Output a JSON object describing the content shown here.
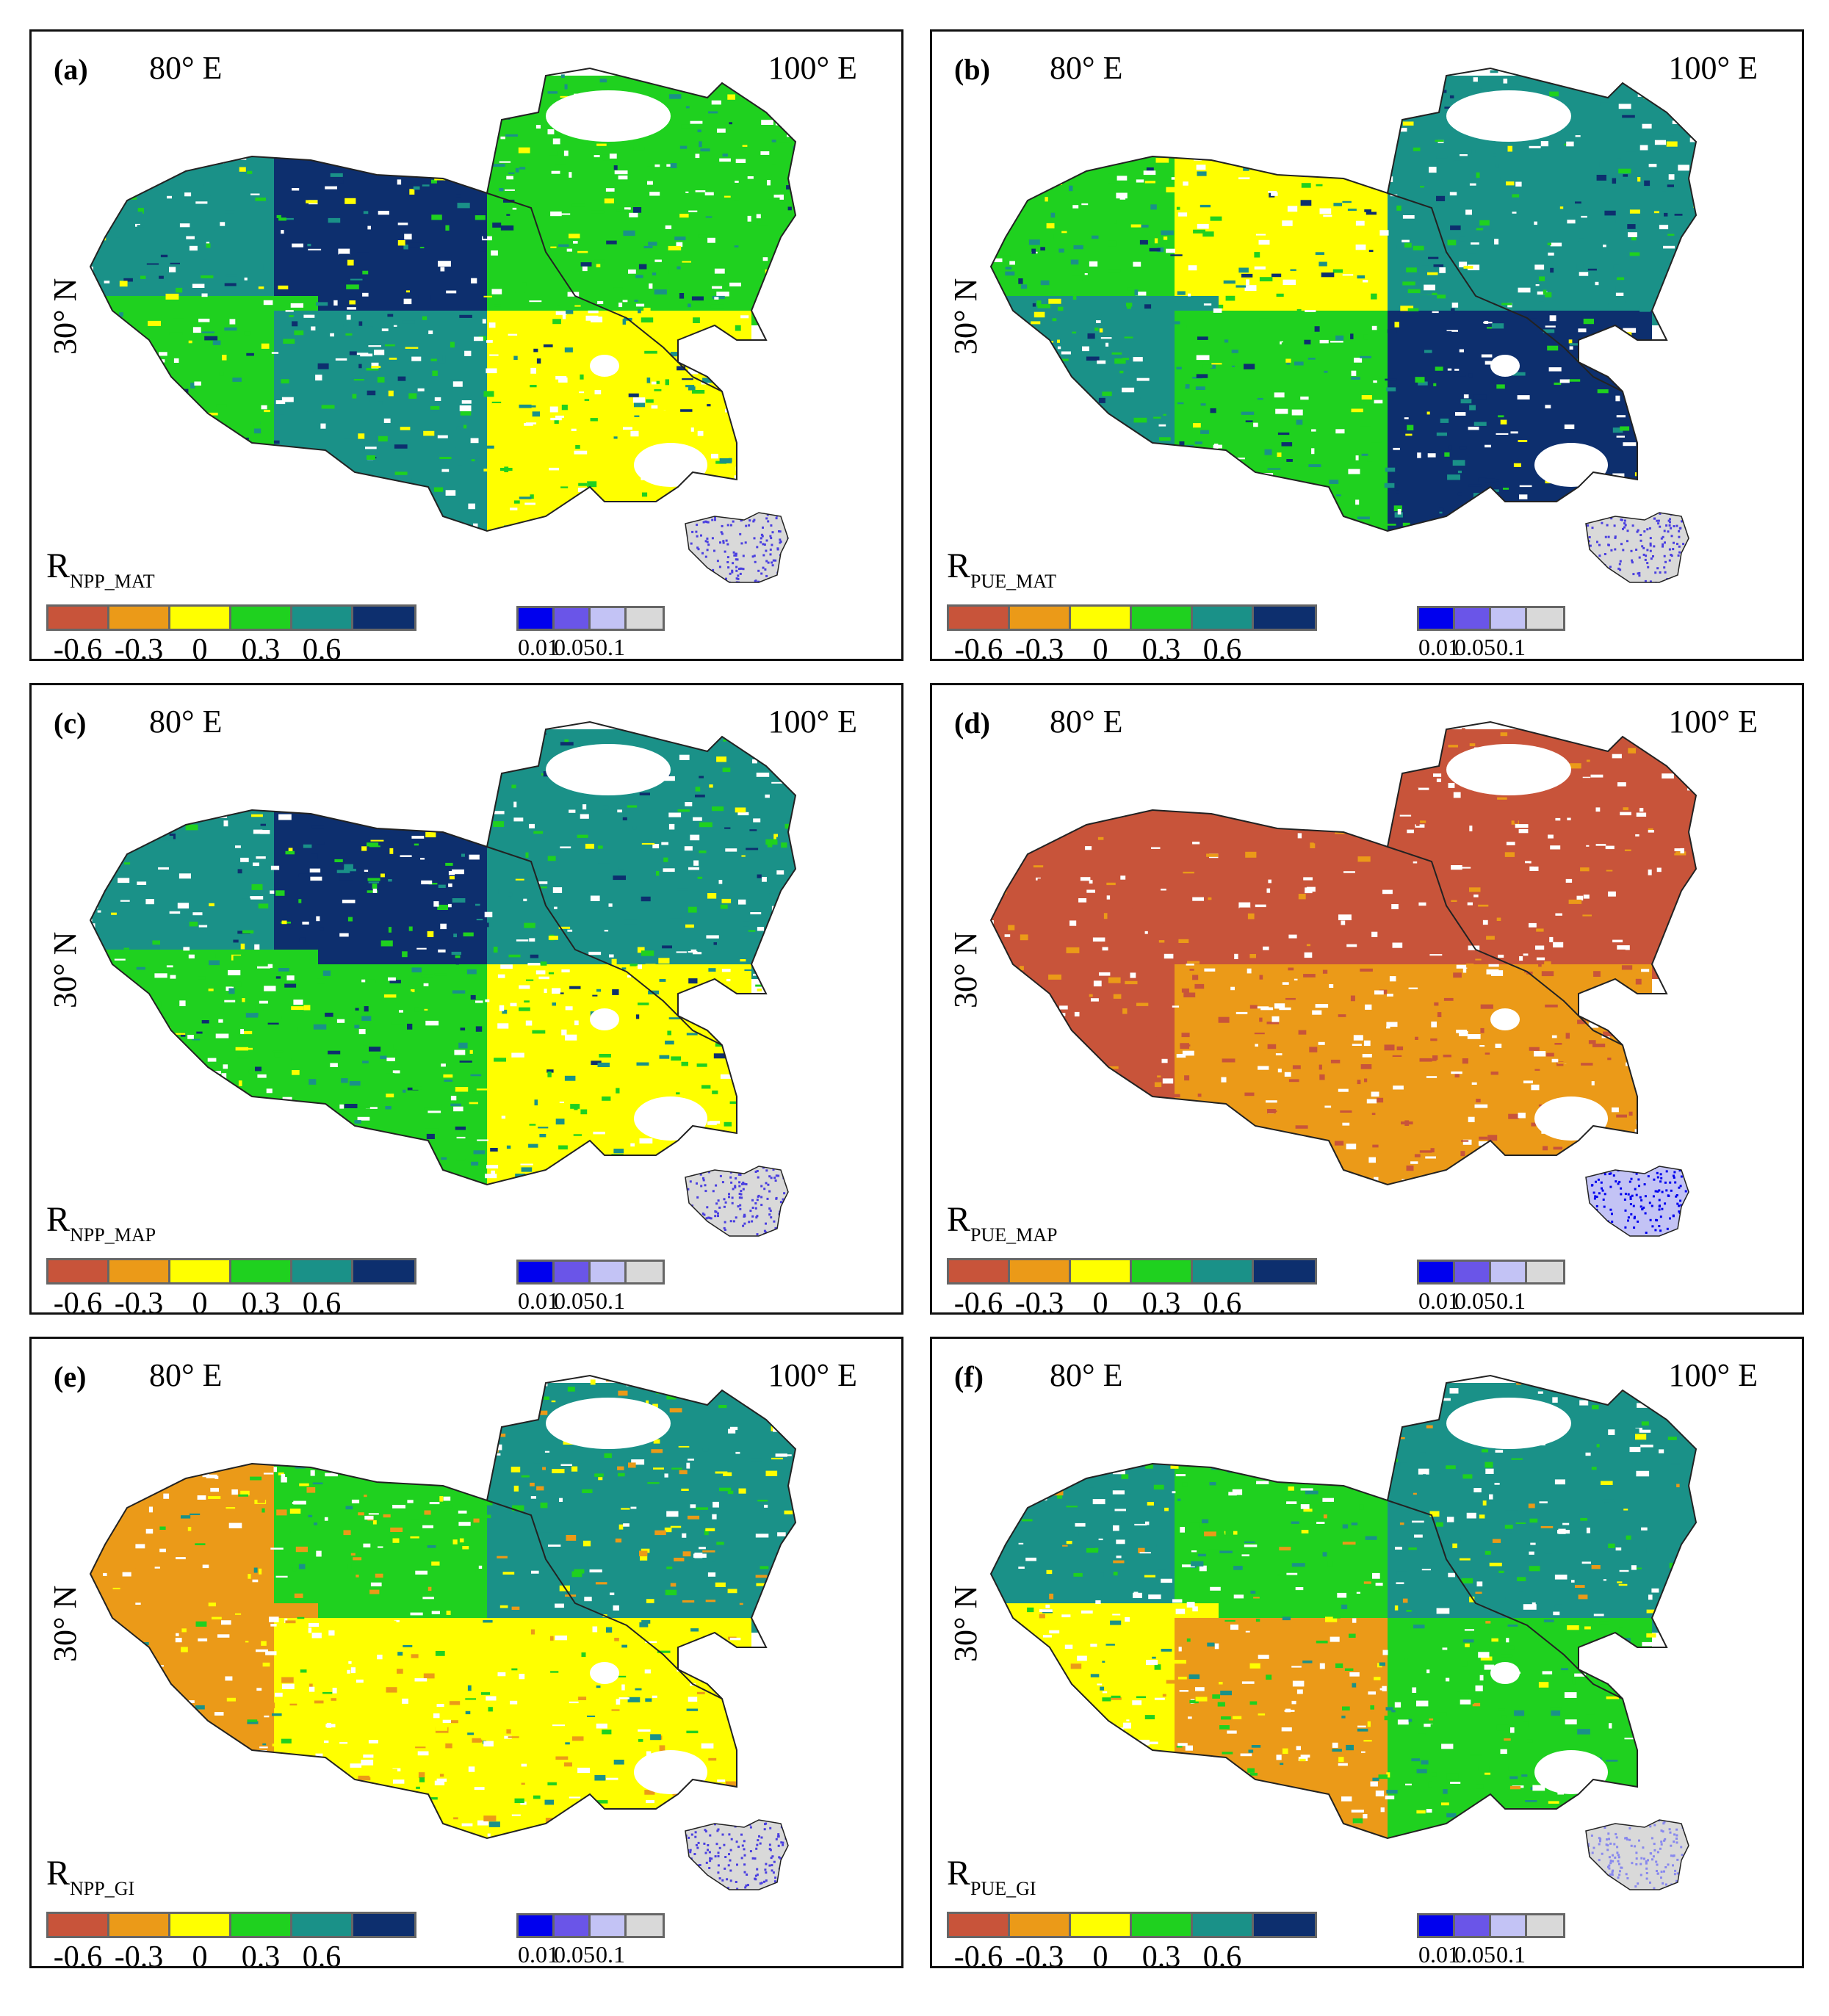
{
  "panels": [
    {
      "id": "a",
      "label": "(a)",
      "r_main": "R",
      "r_sub": "NPP_MAT"
    },
    {
      "id": "b",
      "label": "(b)",
      "r_main": "R",
      "r_sub": "PUE_MAT"
    },
    {
      "id": "c",
      "label": "(c)",
      "r_main": "R",
      "r_sub": "NPP_MAP"
    },
    {
      "id": "d",
      "label": "(d)",
      "r_main": "R",
      "r_sub": "PUE_MAP"
    },
    {
      "id": "e",
      "label": "(e)",
      "r_main": "R",
      "r_sub": "NPP_GI"
    },
    {
      "id": "f",
      "label": "(f)",
      "r_main": "R",
      "r_sub": "PUE_GI"
    }
  ],
  "axes": {
    "lon_left": "80° E",
    "lon_right": "100° E",
    "lat": "30° N"
  },
  "colorbar": {
    "colors": [
      "#c8543a",
      "#eb9a18",
      "#ffff00",
      "#1fd11f",
      "#1a9188",
      "#0d2f6e"
    ],
    "ticks": [
      "-0.6",
      "-0.3",
      "0",
      "0.3",
      "0.6"
    ]
  },
  "pbar": {
    "colors": [
      "#0000ee",
      "#6a55e8",
      "#c3c3f5",
      "#d9d9d9"
    ],
    "ticks": [
      "0.01",
      "0.05",
      "0.1"
    ]
  },
  "map_colors": {
    "a": [
      "#1a9188",
      "#0d2f6e",
      "#1fd11f",
      "#1a9188",
      "#1fd11f",
      "#ffff00"
    ],
    "b": [
      "#1fd11f",
      "#ffff00",
      "#1a9188",
      "#1fd11f",
      "#1a9188",
      "#0d2f6e"
    ],
    "c": [
      "#1a9188",
      "#0d2f6e",
      "#1fd11f",
      "#1fd11f",
      "#1a9188",
      "#ffff00"
    ],
    "d": [
      "#c8543a",
      "#c8543a",
      "#c8543a",
      "#eb9a18",
      "#c8543a",
      "#eb9a18"
    ],
    "e": [
      "#eb9a18",
      "#1fd11f",
      "#eb9a18",
      "#ffff00",
      "#1a9188",
      "#ffff00"
    ],
    "f": [
      "#1a9188",
      "#1fd11f",
      "#ffff00",
      "#eb9a18",
      "#1a9188",
      "#1fd11f"
    ]
  },
  "inset_colors": {
    "a": {
      "base": "#d9d9d9",
      "dots": "#4a3fe0"
    },
    "b": {
      "base": "#d9d9d9",
      "dots": "#4a3fe0"
    },
    "c": {
      "base": "#d9d9d9",
      "dots": "#4a3fe0"
    },
    "d": {
      "base": "#c3c3f5",
      "dots": "#0000ee"
    },
    "e": {
      "base": "#d9d9d9",
      "dots": "#4a3fe0"
    },
    "f": {
      "base": "#d9d9d9",
      "dots": "#8888ee"
    }
  }
}
